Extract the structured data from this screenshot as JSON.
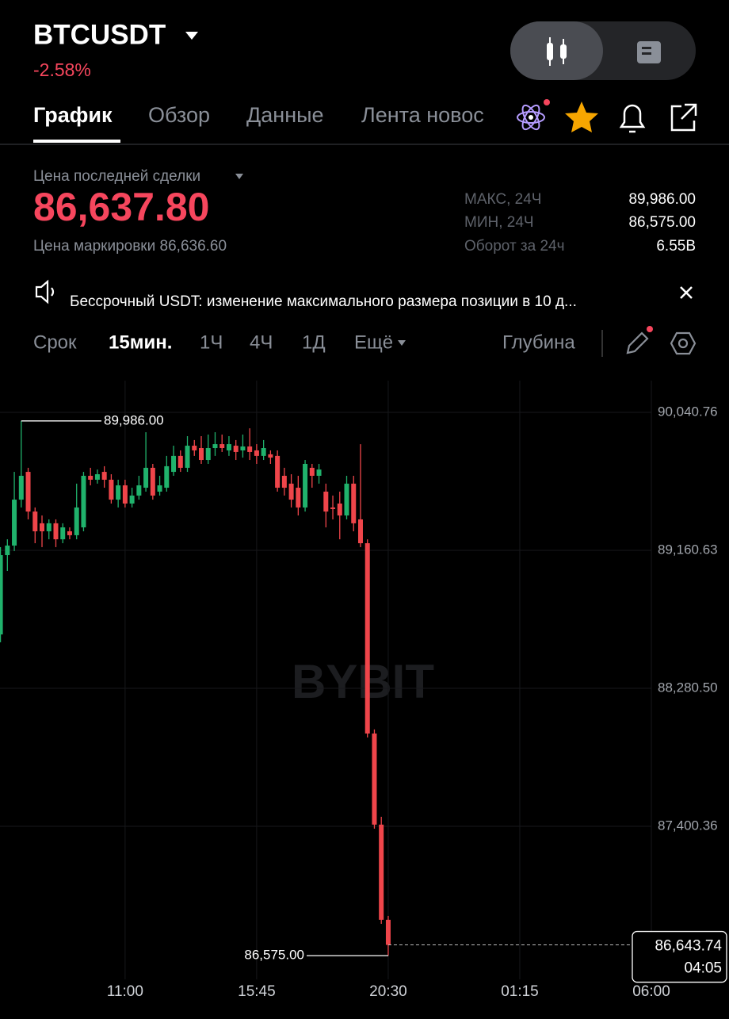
{
  "header": {
    "symbol": "BTCUSDT",
    "change": "-2.58%"
  },
  "tabs": [
    "График",
    "Обзор",
    "Данные",
    "Лента новос"
  ],
  "price": {
    "label": "Цена последней сделки",
    "last": "86,637.80",
    "mark_label": "Цена маркировки",
    "mark": "86,636.60"
  },
  "stats": [
    {
      "label": "МАКС, 24Ч",
      "value": "89,986.00"
    },
    {
      "label": "МИН, 24Ч",
      "value": "86,575.00"
    },
    {
      "label": "Оборот за 24ч",
      "value": "6.55B"
    }
  ],
  "announcement": "Бессрочный USDT: изменение максимального размера позиции в 10 д...",
  "timeframes": [
    "Срок",
    "15мин.",
    "1Ч",
    "4Ч",
    "1Д",
    "Ещё"
  ],
  "depth": "Глубина",
  "chart_data": {
    "type": "candlestick",
    "watermark": "BYBIT",
    "x": [
      390,
      405,
      420,
      435,
      450,
      465,
      480,
      495,
      510,
      525,
      540,
      555,
      570,
      585,
      600,
      615,
      630,
      645,
      660,
      675,
      690,
      705,
      720,
      735,
      750,
      765,
      780,
      795,
      810,
      825,
      840,
      855,
      870,
      885,
      900,
      915,
      930,
      945,
      960,
      975,
      990,
      1005,
      1020,
      1035,
      1050,
      1065,
      1080,
      1095,
      1110,
      1125,
      1140,
      1155,
      1170,
      1185,
      1200,
      1215,
      1230
    ],
    "open": [
      88624,
      89130,
      89191,
      89484,
      89661,
      89408,
      89333,
      89282,
      89333,
      89231,
      89282,
      89257,
      89307,
      89636,
      89611,
      89661,
      89611,
      89484,
      89575,
      89459,
      89510,
      89560,
      89687,
      89535,
      89560,
      89661,
      89763,
      89687,
      89828,
      89813,
      89737,
      89813,
      89838,
      89798,
      89828,
      89798,
      89823,
      89798,
      89763,
      89773,
      89763,
      89636,
      89586,
      89560,
      89434,
      89687,
      89636,
      89535,
      89434,
      89459,
      89383,
      89586,
      89358,
      89206,
      87992,
      87411,
      86804
    ],
    "high": [
      89181,
      89231,
      89661,
      89986,
      89687,
      89434,
      89383,
      89358,
      89358,
      89333,
      89307,
      89586,
      89661,
      89687,
      89676,
      89697,
      89646,
      89611,
      89611,
      89560,
      89636,
      89914,
      89712,
      89636,
      89763,
      89828,
      89798,
      89889,
      89864,
      89889,
      89899,
      89914,
      89899,
      89889,
      89864,
      89899,
      89939,
      89838,
      89864,
      89798,
      89798,
      89687,
      89646,
      89636,
      89737,
      89712,
      89712,
      89586,
      89510,
      89535,
      89636,
      89636,
      89838,
      89231,
      88018,
      87461,
      86829
    ],
    "low": [
      88574,
      89029,
      89156,
      89434,
      89358,
      89206,
      89181,
      89231,
      89181,
      89206,
      89231,
      89231,
      89282,
      89575,
      89586,
      89560,
      89459,
      89434,
      89434,
      89434,
      89484,
      89535,
      89484,
      89510,
      89535,
      89636,
      89661,
      89661,
      89763,
      89712,
      89712,
      89763,
      89788,
      89763,
      89737,
      89752,
      89737,
      89712,
      89737,
      89712,
      89535,
      89510,
      89434,
      89383,
      89408,
      89560,
      89586,
      89307,
      89358,
      89231,
      89358,
      89282,
      89181,
      87967,
      87385,
      86778,
      86575
    ],
    "close": [
      89130,
      89191,
      89484,
      89636,
      89408,
      89282,
      89282,
      89333,
      89231,
      89307,
      89257,
      89434,
      89636,
      89611,
      89646,
      89611,
      89484,
      89575,
      89459,
      89510,
      89575,
      89687,
      89510,
      89575,
      89697,
      89763,
      89687,
      89828,
      89798,
      89737,
      89813,
      89838,
      89813,
      89838,
      89788,
      89823,
      89788,
      89763,
      89813,
      89752,
      89560,
      89560,
      89484,
      89434,
      89712,
      89636,
      89676,
      89408,
      89424,
      89383,
      89586,
      89333,
      89206,
      87992,
      87411,
      86804,
      86643.74
    ],
    "up_color": "#20b26c",
    "down_color": "#ef454a",
    "grid": true,
    "xlim": [
      389,
      1800
    ],
    "xticks": [
      {
        "value": 660,
        "label": "11:00"
      },
      {
        "value": 945,
        "label": "15:45"
      },
      {
        "value": 1230,
        "label": "20:30"
      },
      {
        "value": 1515,
        "label": "01:15"
      },
      {
        "value": 1800,
        "label": "06:00"
      }
    ],
    "ylim": [
      86424,
      90243
    ],
    "yticks": [
      {
        "value": 87400.36,
        "label": "87,400.36"
      },
      {
        "value": 88280.5,
        "label": "88,280.50"
      },
      {
        "value": 89160.63,
        "label": "89,160.63"
      },
      {
        "value": 90040.76,
        "label": "90,040.76"
      }
    ],
    "annotations": [
      {
        "x": 435,
        "value": 89986,
        "label": "89,986.00"
      },
      {
        "x": 1230,
        "value": 86575,
        "label": "86,575.00"
      }
    ],
    "last_price": {
      "value": 86643.74,
      "label": "86,643.74"
    },
    "countdown": "04:05"
  }
}
